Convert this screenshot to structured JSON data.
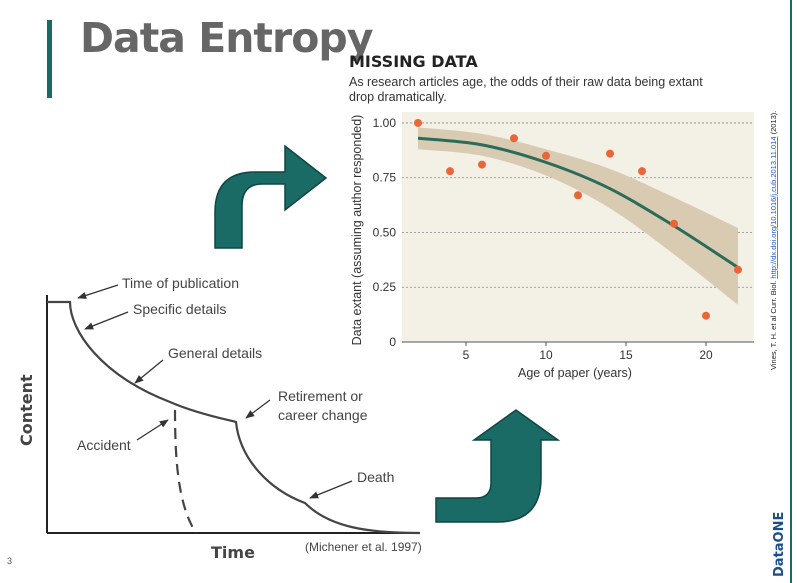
{
  "slide": {
    "title": "Data Entropy",
    "page_number": "3"
  },
  "colors": {
    "accent": "#1a6b66",
    "title_gray": "#666666",
    "arrow_fill": "#1a6b66",
    "point_color": "#e8673a",
    "fit_line": "#2a6b59",
    "band": "#d8cbb2",
    "plot_bg": "#f3f0e6"
  },
  "entropy_diagram": {
    "y_axis_label": "Content",
    "x_axis_label": "Time",
    "annotations": {
      "time_of_publication": "Time of publication",
      "specific_details": "Specific details",
      "general_details": "General details",
      "retirement": [
        "Retirement or",
        "career change"
      ],
      "accident": "Accident",
      "death": "Death"
    },
    "source": "(Michener et al. 1997)"
  },
  "missing_data": {
    "heading": "MISSING DATA",
    "subtitle_lines": [
      "As research articles age, the odds of their raw data being extant",
      "drop dramatically."
    ],
    "citation_prefix": "Vines, T. H. et al Curr. Biol. ",
    "citation_link": "http://dx.doi.org/10.1016/j.cub.2013.11.014",
    "citation_suffix": " (2013)."
  },
  "chart_data": {
    "type": "scatter",
    "title": "MISSING DATA",
    "xlabel": "Age of paper (years)",
    "ylabel": "Data extant (assuming author responded)",
    "xlim": [
      1,
      23
    ],
    "ylim": [
      0,
      1.05
    ],
    "x_ticks": [
      5,
      10,
      15,
      20
    ],
    "y_ticks": [
      0,
      0.25,
      0.5,
      0.75,
      1.0
    ],
    "y_tick_labels": [
      "0",
      "0.25",
      "0.50",
      "0.75",
      "1.00"
    ],
    "grid": "horizontal dotted",
    "points": [
      {
        "x": 2,
        "y": 1.0
      },
      {
        "x": 4,
        "y": 0.78
      },
      {
        "x": 6,
        "y": 0.81
      },
      {
        "x": 8,
        "y": 0.93
      },
      {
        "x": 10,
        "y": 0.85
      },
      {
        "x": 12,
        "y": 0.67
      },
      {
        "x": 14,
        "y": 0.86
      },
      {
        "x": 16,
        "y": 0.78
      },
      {
        "x": 18,
        "y": 0.54
      },
      {
        "x": 20,
        "y": 0.12
      },
      {
        "x": 22,
        "y": 0.33
      }
    ],
    "fit_line": [
      {
        "x": 2,
        "y": 0.93
      },
      {
        "x": 6,
        "y": 0.9
      },
      {
        "x": 10,
        "y": 0.82
      },
      {
        "x": 14,
        "y": 0.7
      },
      {
        "x": 18,
        "y": 0.53
      },
      {
        "x": 22,
        "y": 0.34
      }
    ],
    "band_upper": [
      {
        "x": 2,
        "y": 0.98
      },
      {
        "x": 6,
        "y": 0.95
      },
      {
        "x": 10,
        "y": 0.88
      },
      {
        "x": 14,
        "y": 0.79
      },
      {
        "x": 18,
        "y": 0.66
      },
      {
        "x": 22,
        "y": 0.52
      }
    ],
    "band_lower": [
      {
        "x": 2,
        "y": 0.88
      },
      {
        "x": 6,
        "y": 0.85
      },
      {
        "x": 10,
        "y": 0.76
      },
      {
        "x": 14,
        "y": 0.61
      },
      {
        "x": 18,
        "y": 0.4
      },
      {
        "x": 22,
        "y": 0.17
      }
    ]
  },
  "logo": {
    "text": "DataONE"
  }
}
